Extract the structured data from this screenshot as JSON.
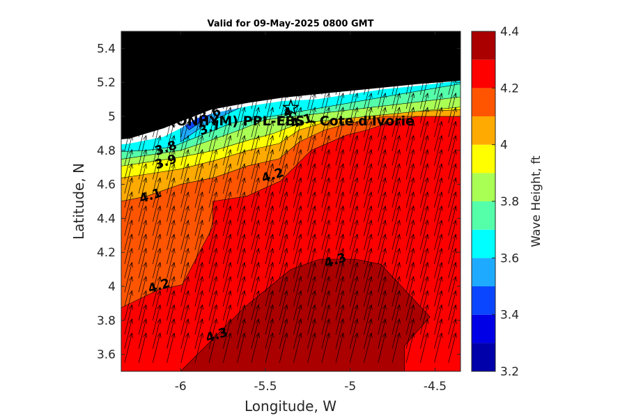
{
  "chart_data": {
    "type": "contour-map",
    "title": "Valid for 09-May-2025 0800 GMT",
    "xlabel": "Longitude, W",
    "ylabel": "Latitude, N",
    "colorbar_label": "Wave Height, ft",
    "xlim": [
      -6.35,
      -4.35
    ],
    "ylim": [
      3.5,
      5.5
    ],
    "x_ticks": [
      -6,
      -5.5,
      -5,
      -4.5
    ],
    "x_tick_labels": [
      "-6",
      "-5.5",
      "-5",
      "-4.5"
    ],
    "y_ticks": [
      3.6,
      3.8,
      4,
      4.2,
      4.4,
      4.6,
      4.8,
      5,
      5.2,
      5.4
    ],
    "y_tick_labels": [
      "3.6",
      "3.8",
      "4",
      "4.2",
      "4.4",
      "4.6",
      "4.8",
      "5",
      "5.2",
      "5.4"
    ],
    "colorbar": {
      "range": [
        3.2,
        4.4
      ],
      "ticks": [
        3.2,
        3.4,
        3.6,
        3.8,
        4,
        4.2,
        4.4
      ],
      "tick_labels": [
        "3.2",
        "3.4",
        "3.6",
        "3.8",
        "4",
        "4.2",
        "4.4"
      ],
      "levels": [
        {
          "from": 3.2,
          "to": 3.3,
          "color": "#0000aa"
        },
        {
          "from": 3.3,
          "to": 3.4,
          "color": "#0000e6"
        },
        {
          "from": 3.4,
          "to": 3.5,
          "color": "#0a46ff"
        },
        {
          "from": 3.5,
          "to": 3.6,
          "color": "#1eaaff"
        },
        {
          "from": 3.6,
          "to": 3.7,
          "color": "#00ffff"
        },
        {
          "from": 3.7,
          "to": 3.8,
          "color": "#55ffaa"
        },
        {
          "from": 3.8,
          "to": 3.9,
          "color": "#aaff55"
        },
        {
          "from": 3.9,
          "to": 4.0,
          "color": "#ffff00"
        },
        {
          "from": 4.0,
          "to": 4.1,
          "color": "#ffaa00"
        },
        {
          "from": 4.1,
          "to": 4.2,
          "color": "#ff5500"
        },
        {
          "from": 4.2,
          "to": 4.3,
          "color": "#ff0000"
        },
        {
          "from": 4.3,
          "to": 4.4,
          "color": "#aa0000"
        }
      ]
    },
    "contour_labels": [
      {
        "text": "3.6",
        "lon": -5.82,
        "lat": 4.99
      },
      {
        "text": "3.7",
        "lon": -5.82,
        "lat": 4.91
      },
      {
        "text": "3.8",
        "lon": -6.08,
        "lat": 4.79
      },
      {
        "text": "3.9",
        "lon": -6.08,
        "lat": 4.71
      },
      {
        "text": "4",
        "lon": -5.36,
        "lat": 5.0
      },
      {
        "text": "4.1",
        "lon": -5.28,
        "lat": 4.95
      },
      {
        "text": "4.1",
        "lon": -6.17,
        "lat": 4.51
      },
      {
        "text": "4.2",
        "lon": -5.45,
        "lat": 4.63
      },
      {
        "text": "4.2",
        "lon": -6.12,
        "lat": 3.98
      },
      {
        "text": "4.3",
        "lon": -5.08,
        "lat": 4.13
      },
      {
        "text": "4.3",
        "lon": -5.78,
        "lat": 3.69
      }
    ],
    "station": {
      "name": "(ONHYM) PPL-EBS - Cote d'Ivorie",
      "lon": -5.35,
      "lat": 5.05
    },
    "colors": {
      "land": "#000000",
      "coast_strip": "#ffffff",
      "arrows": "#000000"
    }
  }
}
